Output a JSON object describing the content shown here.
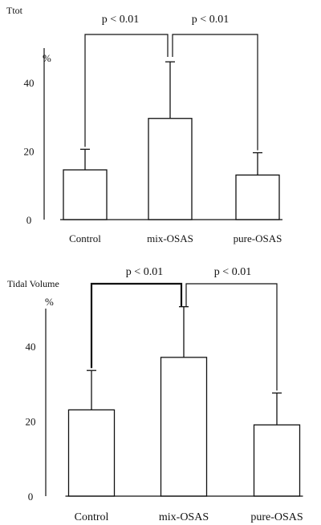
{
  "chart_data": [
    {
      "type": "bar",
      "title": "Ttot",
      "ylabel": "%",
      "categories": [
        "Control",
        "mix-OSAS",
        "pure-OSAS"
      ],
      "values": [
        14.5,
        29.5,
        13
      ],
      "error_bars": [
        6,
        16.5,
        6.5
      ],
      "ylim": [
        0,
        50
      ],
      "yticks": [
        0,
        20,
        40
      ],
      "grid": false,
      "annotations": [
        {
          "label": "p < 0.01",
          "between": [
            "Control",
            "mix-OSAS"
          ]
        },
        {
          "label": "p < 0.01",
          "between": [
            "mix-OSAS",
            "pure-OSAS"
          ]
        }
      ]
    },
    {
      "type": "bar",
      "title": "Tidal Volume",
      "ylabel": "%",
      "categories": [
        "Control",
        "mix-OSAS",
        "pure-OSAS"
      ],
      "values": [
        23,
        37,
        19
      ],
      "error_bars": [
        10.5,
        13.5,
        8.5
      ],
      "ylim": [
        0,
        50
      ],
      "yticks": [
        0,
        20,
        40
      ],
      "grid": false,
      "annotations": [
        {
          "label": "p < 0.01",
          "between": [
            "Control",
            "mix-OSAS"
          ]
        },
        {
          "label": "p < 0.01",
          "between": [
            "mix-OSAS",
            "pure-OSAS"
          ]
        }
      ]
    }
  ]
}
